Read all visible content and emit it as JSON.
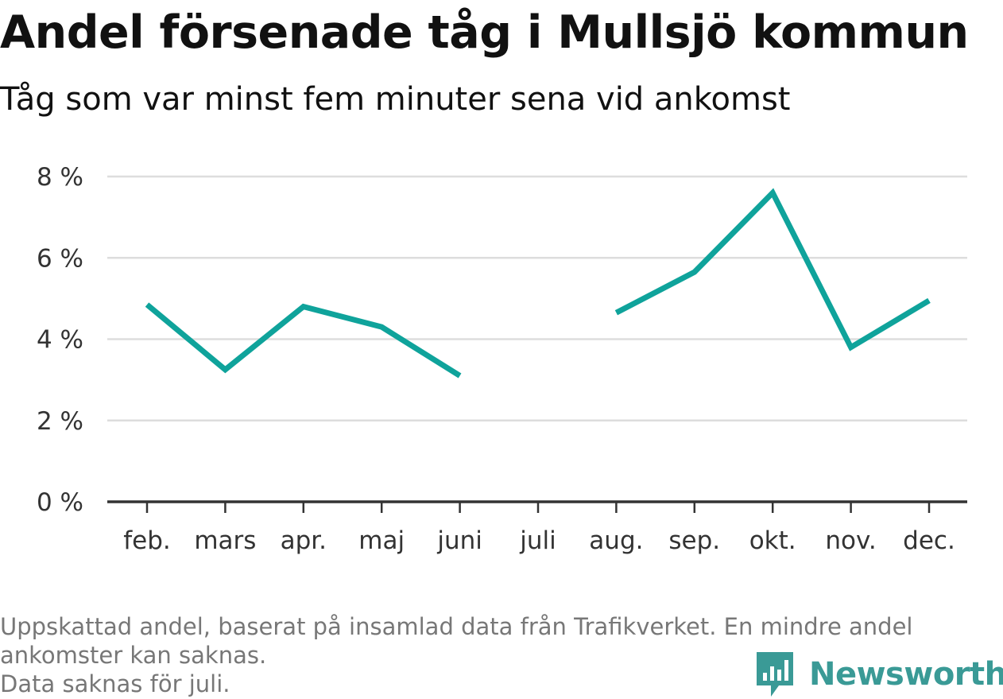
{
  "chart_data": {
    "type": "line",
    "title": "Andel försenade tåg i Mullsjö kommun",
    "subtitle": "Tåg som var minst fem minuter sena vid ankomst",
    "categories": [
      "feb.",
      "mars",
      "apr.",
      "maj",
      "juni",
      "juli",
      "aug.",
      "sep.",
      "okt.",
      "nov.",
      "dec."
    ],
    "series": [
      {
        "values": [
          4.85,
          3.25,
          4.8,
          4.3,
          3.1,
          null,
          4.65,
          5.65,
          7.6,
          3.8,
          4.95
        ]
      }
    ],
    "ylim": [
      0,
      8
    ],
    "yticks": [
      0,
      2,
      4,
      6,
      8
    ],
    "ytick_labels": [
      "0 %",
      "2 %",
      "4 %",
      "6 %",
      "8 %"
    ],
    "grid": true,
    "line_color": "#0fa39b"
  },
  "footnote": {
    "line1": "Uppskattad andel, baserat på insamlad data från Trafikverket. En mindre andel",
    "line2": "ankomster kan saknas.",
    "line3": "Data saknas för juli."
  },
  "brand": {
    "name": "Newsworthy",
    "icon": "newsworthy-logo-icon",
    "color": "#3a9a96"
  }
}
